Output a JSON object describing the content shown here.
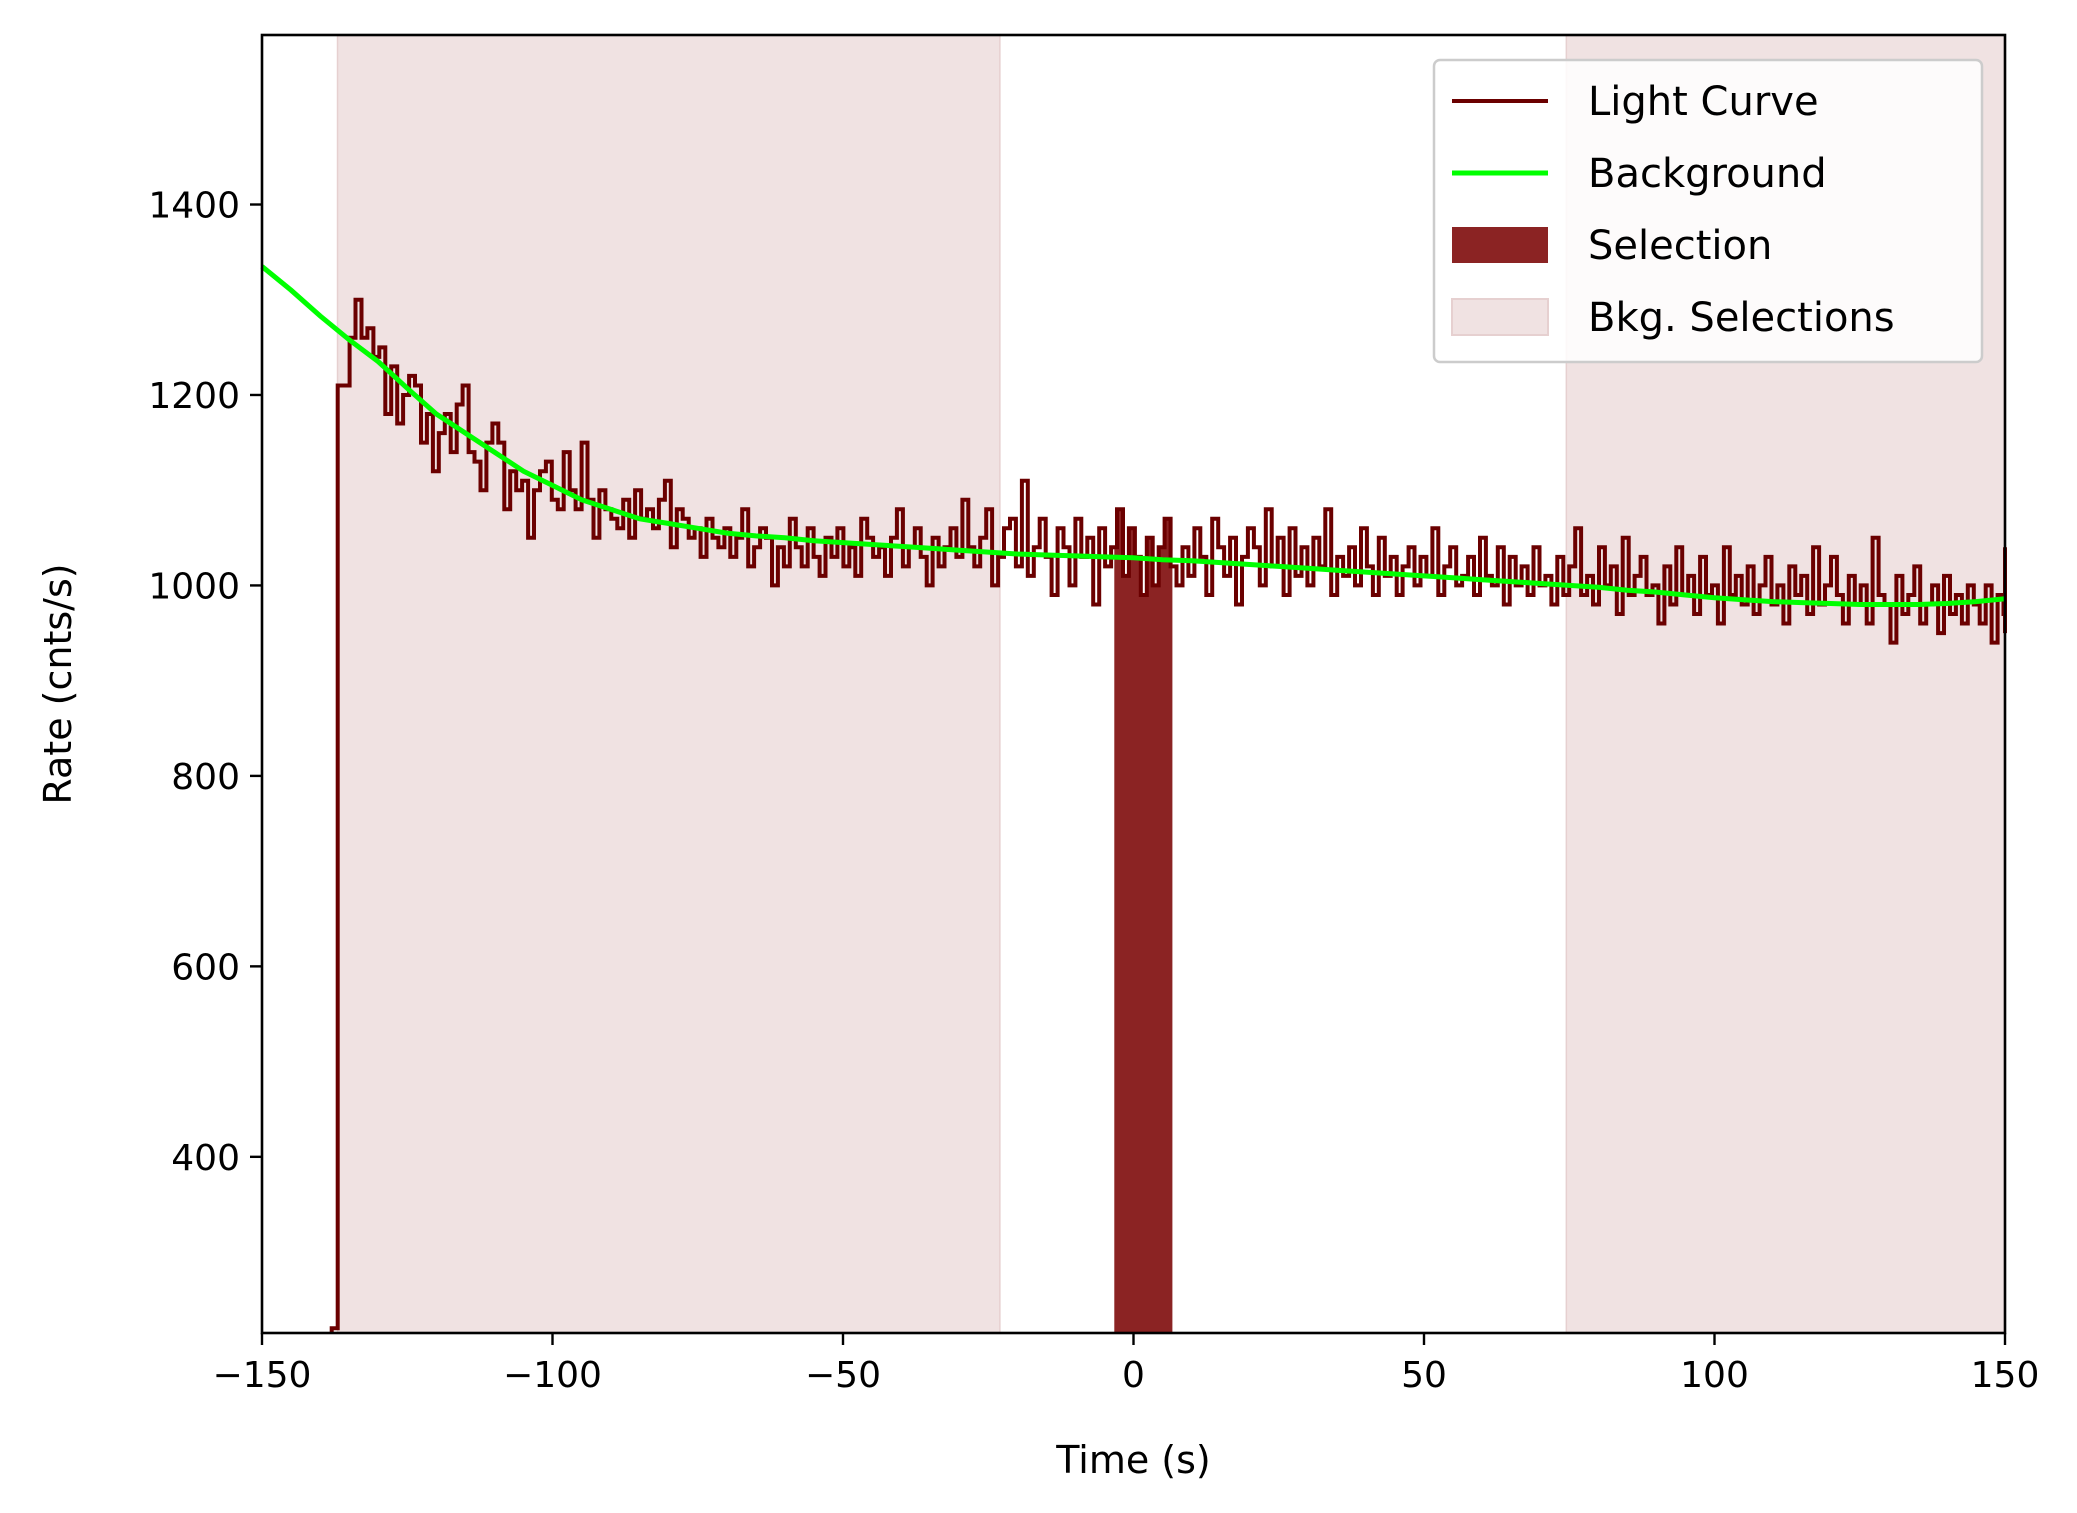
{
  "chart_data": {
    "type": "line",
    "title": "",
    "xlabel": "Time (s)",
    "ylabel": "Rate (cnts/s)",
    "xlim": [
      -150,
      150
    ],
    "ylim": [
      215,
      1578
    ],
    "xticks": [
      -150,
      -100,
      -50,
      0,
      50,
      100,
      150
    ],
    "xtick_labels": [
      "−150",
      "−100",
      "−50",
      "0",
      "50",
      "100",
      "150"
    ],
    "yticks": [
      400,
      600,
      800,
      1000,
      1200,
      1400
    ],
    "ytick_labels": [
      "400",
      "600",
      "800",
      "1000",
      "1200",
      "1400"
    ],
    "grid": false,
    "legend_position": "top-right",
    "colors": {
      "light_curve": "#6b0000",
      "background": "#00ff00",
      "selection": "#8b2323",
      "bkg_selections": "#f0e2e2"
    },
    "series": [
      {
        "name": "Light Curve",
        "style": "step",
        "bin_width": 1.024,
        "x_start": -138,
        "values": [
          220,
          1210,
          1210,
          1260,
          1300,
          1260,
          1270,
          1240,
          1250,
          1180,
          1230,
          1170,
          1200,
          1220,
          1210,
          1150,
          1180,
          1120,
          1160,
          1180,
          1140,
          1190,
          1210,
          1140,
          1130,
          1100,
          1150,
          1170,
          1150,
          1080,
          1120,
          1100,
          1110,
          1050,
          1100,
          1120,
          1130,
          1090,
          1080,
          1140,
          1100,
          1080,
          1150,
          1090,
          1050,
          1100,
          1080,
          1070,
          1060,
          1090,
          1050,
          1100,
          1070,
          1080,
          1060,
          1090,
          1110,
          1040,
          1080,
          1070,
          1050,
          1060,
          1030,
          1070,
          1050,
          1040,
          1060,
          1030,
          1050,
          1080,
          1020,
          1040,
          1060,
          1050,
          1000,
          1040,
          1020,
          1070,
          1040,
          1020,
          1060,
          1030,
          1010,
          1050,
          1030,
          1060,
          1020,
          1040,
          1010,
          1070,
          1050,
          1030,
          1040,
          1010,
          1050,
          1080,
          1020,
          1040,
          1060,
          1030,
          1000,
          1050,
          1020,
          1040,
          1060,
          1030,
          1090,
          1040,
          1020,
          1050,
          1080,
          1000,
          1030,
          1060,
          1070,
          1020,
          1110,
          1010,
          1040,
          1070,
          1030,
          990,
          1060,
          1040,
          1000,
          1070,
          1030,
          1050,
          980,
          1060,
          1020,
          1040,
          1080,
          1010,
          1060,
          1030,
          990,
          1050,
          1000,
          1040,
          1070,
          1020,
          1000,
          1040,
          1010,
          1060,
          1030,
          990,
          1070,
          1040,
          1010,
          1050,
          980,
          1030,
          1060,
          1040,
          1000,
          1080,
          1020,
          1050,
          990,
          1060,
          1010,
          1040,
          1000,
          1050,
          1020,
          1080,
          990,
          1030,
          1010,
          1040,
          1000,
          1060,
          1020,
          990,
          1050,
          1010,
          1030,
          990,
          1020,
          1040,
          1000,
          1030,
          1010,
          1060,
          990,
          1020,
          1040,
          1000,
          1010,
          1030,
          990,
          1050,
          1010,
          1000,
          1040,
          980,
          1030,
          1000,
          1020,
          990,
          1040,
          1000,
          1010,
          980,
          1030,
          990,
          1020,
          1060,
          990,
          1010,
          980,
          1040,
          1000,
          1020,
          970,
          1050,
          990,
          1010,
          1030,
          990,
          1000,
          960,
          1020,
          980,
          1040,
          990,
          1010,
          970,
          1030,
          990,
          1000,
          960,
          1040,
          990,
          1010,
          980,
          1020,
          970,
          1000,
          1030,
          980,
          1000,
          960,
          1020,
          990,
          1010,
          970,
          1040,
          980,
          1000,
          1030,
          990,
          960,
          1010,
          980,
          1000,
          960,
          1050,
          990,
          980,
          940,
          1010,
          970,
          990,
          1020,
          960,
          980,
          1000,
          950,
          1010,
          970,
          990,
          960,
          1000,
          980,
          960,
          1000,
          940,
          990,
          970,
          1010,
          950,
          1000,
          970,
          990,
          960,
          1020,
          980,
          960,
          1000,
          970,
          950,
          990,
          1010,
          970,
          980,
          960,
          1000,
          970,
          990,
          950,
          1020,
          980,
          1000,
          960,
          1040,
          980,
          1030,
          960,
          990
        ]
      },
      {
        "name": "Background",
        "style": "line",
        "x": [
          -150,
          -145,
          -140,
          -135,
          -130,
          -125,
          -120,
          -115,
          -110,
          -105,
          -100,
          -95,
          -90,
          -85,
          -80,
          -75,
          -70,
          -65,
          -60,
          -55,
          -50,
          -45,
          -40,
          -35,
          -30,
          -25,
          -20,
          -15,
          -10,
          -5,
          0,
          5,
          10,
          15,
          20,
          25,
          30,
          35,
          40,
          45,
          50,
          55,
          60,
          65,
          70,
          75,
          80,
          85,
          90,
          95,
          100,
          105,
          110,
          115,
          120,
          125,
          130,
          135,
          140,
          145,
          150
        ],
        "values": [
          1335,
          1310,
          1283,
          1258,
          1235,
          1207,
          1180,
          1160,
          1140,
          1120,
          1105,
          1090,
          1080,
          1070,
          1065,
          1060,
          1055,
          1052,
          1050,
          1047,
          1045,
          1043,
          1041,
          1039,
          1037,
          1035,
          1033,
          1032,
          1031,
          1030,
          1029,
          1027,
          1026,
          1024,
          1022,
          1020,
          1018,
          1016,
          1014,
          1012,
          1010,
          1008,
          1006,
          1004,
          1002,
          1000,
          998,
          995,
          993,
          990,
          987,
          985,
          983,
          982,
          981,
          980,
          980,
          980,
          981,
          983,
          986
        ]
      }
    ],
    "selection": {
      "name": "Selection",
      "x_range": [
        -3.3,
        6.7
      ]
    },
    "bkg_selections": {
      "name": "Bkg. Selections",
      "ranges": [
        [
          -137,
          -23
        ],
        [
          74.5,
          150
        ]
      ]
    }
  }
}
